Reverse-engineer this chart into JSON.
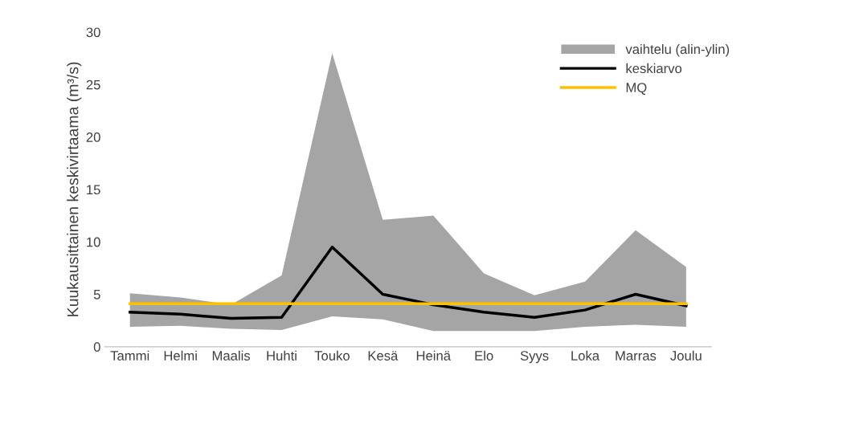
{
  "chart_data": {
    "type": "line",
    "ylabel": "Kuukausittainen keskivirtaama (m³/s)",
    "categories": [
      "Tammi",
      "Helmi",
      "Maalis",
      "Huhti",
      "Touko",
      "Kesä",
      "Heinä",
      "Elo",
      "Syys",
      "Loka",
      "Marras",
      "Joulu"
    ],
    "series": [
      {
        "name": "vaihtelu (alin-ylin)",
        "type": "area",
        "color": "#a5a5a5",
        "values": [
          null,
          null,
          null,
          null,
          null,
          null,
          null,
          null,
          null,
          null,
          null,
          null
        ],
        "lower": [
          1.9,
          2.0,
          1.7,
          1.6,
          2.9,
          2.6,
          1.5,
          1.5,
          1.5,
          1.9,
          2.1,
          1.9
        ],
        "upper": [
          5.1,
          4.7,
          4.0,
          6.8,
          28.0,
          12.1,
          12.5,
          7.0,
          4.9,
          6.2,
          11.1,
          7.6
        ]
      },
      {
        "name": "keskiarvo",
        "type": "line",
        "color": "#000000",
        "values": [
          3.3,
          3.1,
          2.7,
          2.8,
          9.5,
          5.0,
          4.0,
          3.3,
          2.8,
          3.5,
          5.0,
          3.9
        ]
      },
      {
        "name": "MQ",
        "type": "line",
        "color": "#ffc000",
        "values": [
          4.1,
          4.1,
          4.1,
          4.1,
          4.1,
          4.1,
          4.1,
          4.1,
          4.1,
          4.1,
          4.1,
          4.1
        ]
      }
    ],
    "ylim": [
      0,
      30
    ],
    "yticks": [
      0,
      5,
      10,
      15,
      20,
      25,
      30
    ],
    "grid": false,
    "legend": "top right"
  }
}
